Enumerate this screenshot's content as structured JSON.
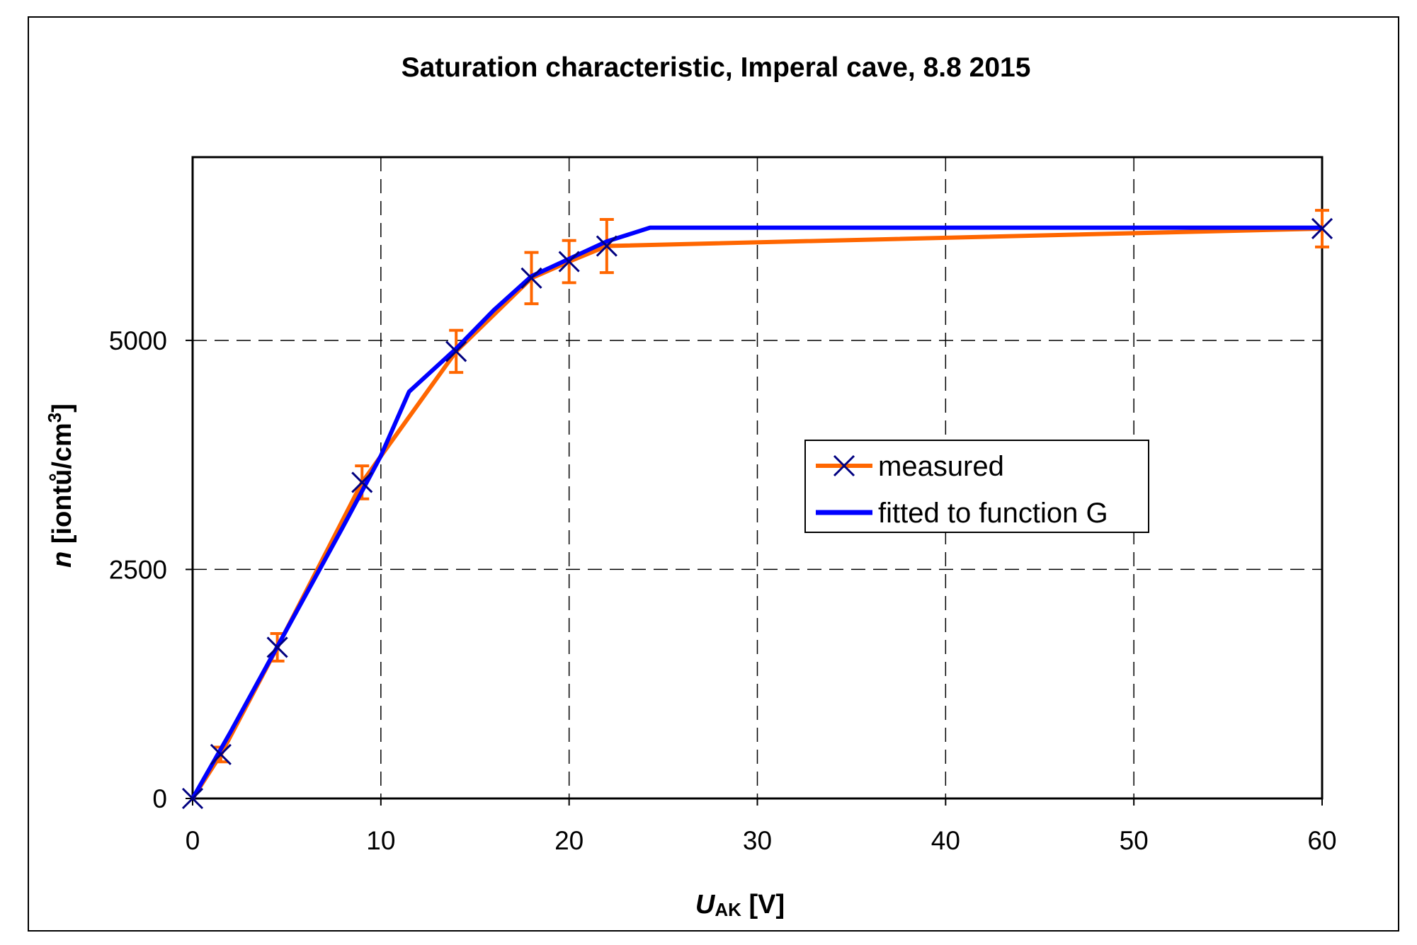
{
  "chart_data": {
    "type": "line",
    "title": "Saturation characteristic, Imperal cave,  8.8 2015",
    "xlabel": {
      "main": "U",
      "sub": "AK",
      "unit": " [V]"
    },
    "ylabel": {
      "main": "n",
      "unit": " [iontů/cm",
      "sup": "3",
      "close": "]"
    },
    "xlim": [
      0,
      60
    ],
    "ylim": [
      0,
      7000
    ],
    "xticks": [
      0,
      10,
      20,
      30,
      40,
      50,
      60
    ],
    "xtick_labels": [
      "0",
      "10",
      "20",
      "30",
      "40",
      "50",
      "60"
    ],
    "yticks": [
      0,
      2500,
      5000
    ],
    "ytick_labels": [
      "0",
      "2500",
      "5000"
    ],
    "grid": true,
    "legend_position": "center-right",
    "series": [
      {
        "name": "measured",
        "color": "#ff6600",
        "marker": "x",
        "marker_color": "#000080",
        "x": [
          0,
          1.5,
          4.5,
          9,
          14,
          18,
          20,
          22,
          60
        ],
        "y": [
          0,
          480,
          1650,
          3450,
          4880,
          5680,
          5860,
          6030,
          6220
        ],
        "error": [
          0,
          80,
          150,
          180,
          230,
          280,
          230,
          290,
          200
        ]
      },
      {
        "name": "fitted to function G",
        "color": "#0000ff",
        "x": [
          0,
          2,
          4,
          6,
          8,
          10,
          11.5,
          14,
          16,
          18,
          20,
          22,
          24.3,
          60
        ],
        "y": [
          0,
          720,
          1470,
          2220,
          2970,
          3740,
          4440,
          4910,
          5330,
          5700,
          5890,
          6080,
          6230,
          6230
        ]
      }
    ]
  }
}
